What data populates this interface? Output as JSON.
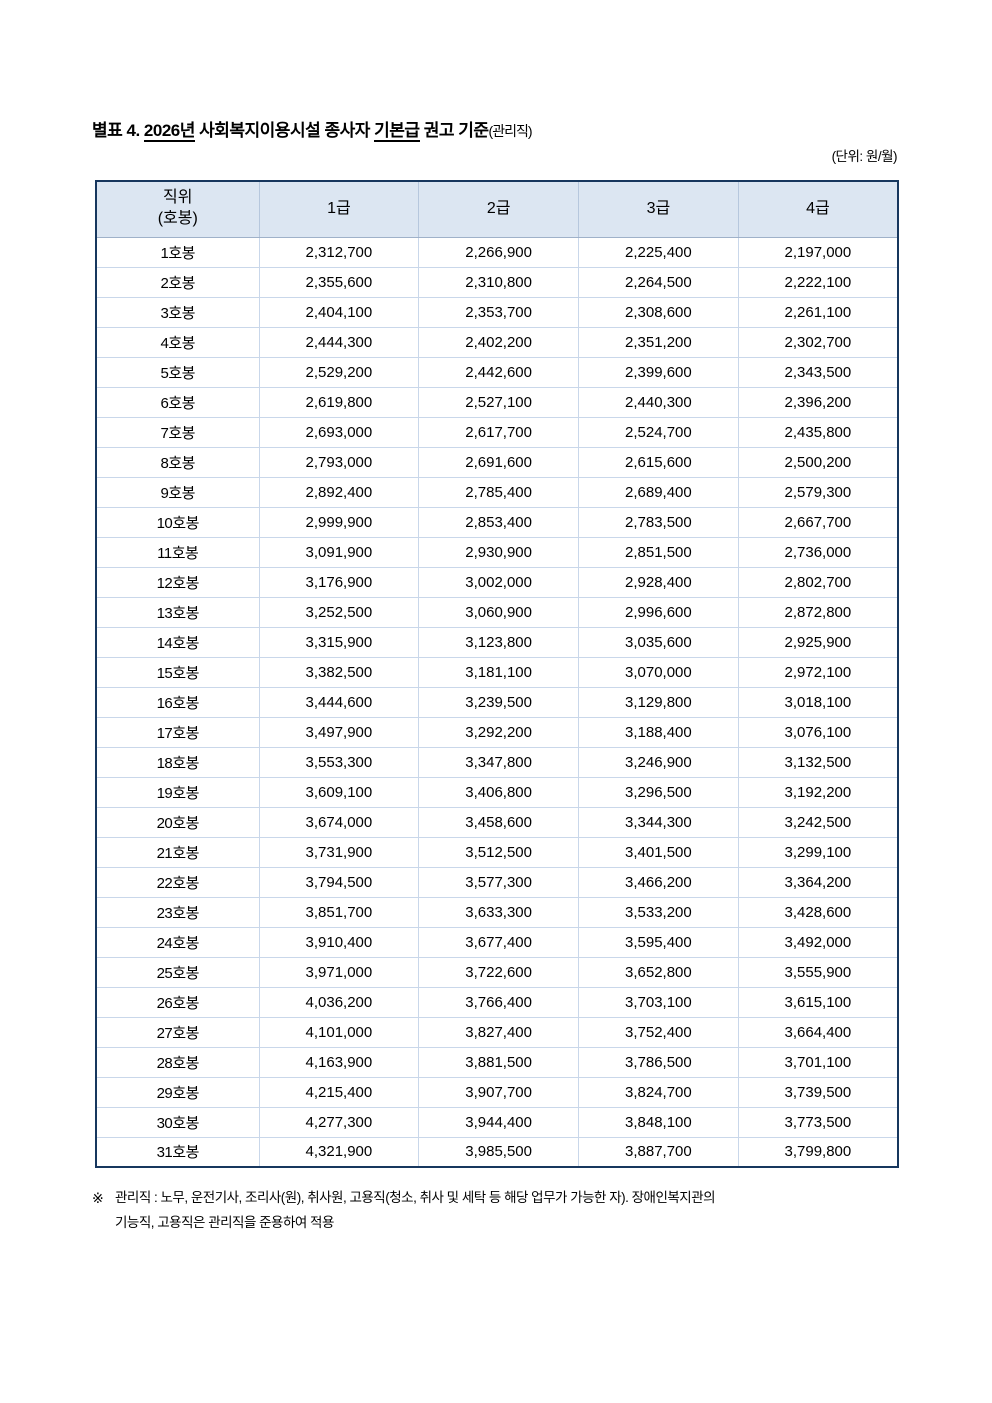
{
  "title": {
    "prefix": "별표 4. ",
    "underlined_year": "2026년",
    "middle": " 사회복지이용시설 종사자 ",
    "underlined_word": "기본급",
    "suffix": " 권고 기준",
    "paren": "(관리직)"
  },
  "unit_label": "(단위: 원/월)",
  "colors": {
    "table_outer_border": "#17375e",
    "table_inner_border": "#c9d7ea",
    "header_background": "#dce6f2"
  },
  "table": {
    "position_header": "직위\n(호봉)",
    "grade_headers": [
      "1급",
      "2급",
      "3급",
      "4급"
    ],
    "rows": [
      {
        "label": "1호봉",
        "values": [
          "2,312,700",
          "2,266,900",
          "2,225,400",
          "2,197,000"
        ]
      },
      {
        "label": "2호봉",
        "values": [
          "2,355,600",
          "2,310,800",
          "2,264,500",
          "2,222,100"
        ]
      },
      {
        "label": "3호봉",
        "values": [
          "2,404,100",
          "2,353,700",
          "2,308,600",
          "2,261,100"
        ]
      },
      {
        "label": "4호봉",
        "values": [
          "2,444,300",
          "2,402,200",
          "2,351,200",
          "2,302,700"
        ]
      },
      {
        "label": "5호봉",
        "values": [
          "2,529,200",
          "2,442,600",
          "2,399,600",
          "2,343,500"
        ]
      },
      {
        "label": "6호봉",
        "values": [
          "2,619,800",
          "2,527,100",
          "2,440,300",
          "2,396,200"
        ]
      },
      {
        "label": "7호봉",
        "values": [
          "2,693,000",
          "2,617,700",
          "2,524,700",
          "2,435,800"
        ]
      },
      {
        "label": "8호봉",
        "values": [
          "2,793,000",
          "2,691,600",
          "2,615,600",
          "2,500,200"
        ]
      },
      {
        "label": "9호봉",
        "values": [
          "2,892,400",
          "2,785,400",
          "2,689,400",
          "2,579,300"
        ]
      },
      {
        "label": "10호봉",
        "values": [
          "2,999,900",
          "2,853,400",
          "2,783,500",
          "2,667,700"
        ]
      },
      {
        "label": "11호봉",
        "values": [
          "3,091,900",
          "2,930,900",
          "2,851,500",
          "2,736,000"
        ]
      },
      {
        "label": "12호봉",
        "values": [
          "3,176,900",
          "3,002,000",
          "2,928,400",
          "2,802,700"
        ]
      },
      {
        "label": "13호봉",
        "values": [
          "3,252,500",
          "3,060,900",
          "2,996,600",
          "2,872,800"
        ]
      },
      {
        "label": "14호봉",
        "values": [
          "3,315,900",
          "3,123,800",
          "3,035,600",
          "2,925,900"
        ]
      },
      {
        "label": "15호봉",
        "values": [
          "3,382,500",
          "3,181,100",
          "3,070,000",
          "2,972,100"
        ]
      },
      {
        "label": "16호봉",
        "values": [
          "3,444,600",
          "3,239,500",
          "3,129,800",
          "3,018,100"
        ]
      },
      {
        "label": "17호봉",
        "values": [
          "3,497,900",
          "3,292,200",
          "3,188,400",
          "3,076,100"
        ]
      },
      {
        "label": "18호봉",
        "values": [
          "3,553,300",
          "3,347,800",
          "3,246,900",
          "3,132,500"
        ]
      },
      {
        "label": "19호봉",
        "values": [
          "3,609,100",
          "3,406,800",
          "3,296,500",
          "3,192,200"
        ]
      },
      {
        "label": "20호봉",
        "values": [
          "3,674,000",
          "3,458,600",
          "3,344,300",
          "3,242,500"
        ]
      },
      {
        "label": "21호봉",
        "values": [
          "3,731,900",
          "3,512,500",
          "3,401,500",
          "3,299,100"
        ]
      },
      {
        "label": "22호봉",
        "values": [
          "3,794,500",
          "3,577,300",
          "3,466,200",
          "3,364,200"
        ]
      },
      {
        "label": "23호봉",
        "values": [
          "3,851,700",
          "3,633,300",
          "3,533,200",
          "3,428,600"
        ]
      },
      {
        "label": "24호봉",
        "values": [
          "3,910,400",
          "3,677,400",
          "3,595,400",
          "3,492,000"
        ]
      },
      {
        "label": "25호봉",
        "values": [
          "3,971,000",
          "3,722,600",
          "3,652,800",
          "3,555,900"
        ]
      },
      {
        "label": "26호봉",
        "values": [
          "4,036,200",
          "3,766,400",
          "3,703,100",
          "3,615,100"
        ]
      },
      {
        "label": "27호봉",
        "values": [
          "4,101,000",
          "3,827,400",
          "3,752,400",
          "3,664,400"
        ]
      },
      {
        "label": "28호봉",
        "values": [
          "4,163,900",
          "3,881,500",
          "3,786,500",
          "3,701,100"
        ]
      },
      {
        "label": "29호봉",
        "values": [
          "4,215,400",
          "3,907,700",
          "3,824,700",
          "3,739,500"
        ]
      },
      {
        "label": "30호봉",
        "values": [
          "4,277,300",
          "3,944,400",
          "3,848,100",
          "3,773,500"
        ]
      },
      {
        "label": "31호봉",
        "values": [
          "4,321,900",
          "3,985,500",
          "3,887,700",
          "3,799,800"
        ]
      }
    ]
  },
  "footnote": {
    "marker": "※",
    "line1": "관리직 : 노무, 운전기사, 조리사(원), 취사원, 고용직(청소, 취사 및 세탁 등 해당 업무가 가능한 자). 장애인복지관의",
    "line2": "기능직, 고용직은 관리직을 준용하여 적용"
  }
}
